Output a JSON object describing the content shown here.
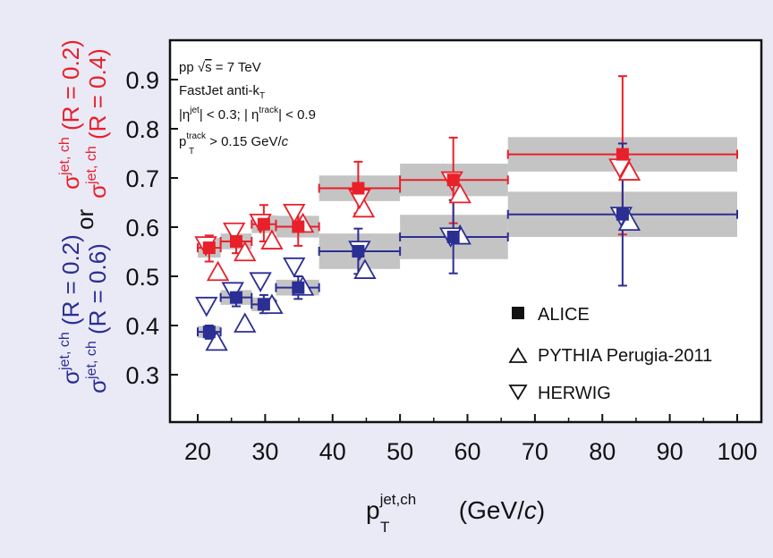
{
  "chart_data": {
    "type": "scatter",
    "xlim": [
      15,
      105
    ],
    "ylim": [
      0.27,
      0.97
    ],
    "xticks": [
      20,
      30,
      40,
      50,
      60,
      70,
      80,
      90,
      100
    ],
    "xtick_labels": [
      "20",
      "30",
      "40",
      "50",
      "60",
      "70",
      "80",
      "90",
      "100"
    ],
    "yticks": [
      0.3,
      0.4,
      0.5,
      0.6,
      0.7,
      0.8,
      0.9
    ],
    "ytick_labels": [
      "0.3",
      "0.4",
      "0.5",
      "0.6",
      "0.7",
      "0.8",
      "0.9"
    ],
    "xlabel": {
      "main": "p",
      "sup": "jet,ch",
      "sub": "T",
      "unit_pre": " (GeV/",
      "unit_var": "c",
      "unit_post": ")"
    },
    "ylabel": {
      "red_top": {
        "sym": "σ",
        "sup": "jet, ch",
        "text": " (R = 0.2)"
      },
      "red_bottom": {
        "sym": "σ",
        "sup": "jet, ch",
        "text": " (R = 0.4)"
      },
      "or": "or",
      "blue_top": {
        "sym": "σ",
        "sup": "jet, ch",
        "text": " (R = 0.2)"
      },
      "blue_bottom": {
        "sym": "σ",
        "sup": "jet, ch",
        "text": " (R = 0.6)"
      }
    },
    "annotations": {
      "line1": {
        "a": "pp ",
        "sqrt": "√",
        "s": "s",
        "b": " = 7 TeV"
      },
      "line2": {
        "a": "FastJet anti-k",
        "sub": "T"
      },
      "line3": {
        "a": "|η",
        "sup1": "jet",
        "b": "| < 0.3; | η",
        "sup2": "track",
        "c": "| < 0.9"
      },
      "line4": {
        "a": "p",
        "sup": "track",
        "sub": "T",
        "b": " > 0.15 GeV/",
        "c": "c"
      }
    },
    "legend": [
      {
        "marker": "square",
        "label": "ALICE"
      },
      {
        "marker": "triangle-up",
        "label": "PYTHIA Perugia-2011"
      },
      {
        "marker": "triangle-down",
        "label": "HERWIG"
      }
    ],
    "grid": false,
    "colors": {
      "red": "#e8202a",
      "blue": "#2b2e92",
      "sys": "#c4c4c4",
      "frame": "#111111"
    },
    "series": [
      {
        "color": "red",
        "alice": [
          {
            "x": 21.7,
            "y": 0.558,
            "xlo": 20,
            "xhi": 23.4,
            "ylo": 0.53,
            "yhi": 0.583,
            "sys": 0.02
          },
          {
            "x": 25.7,
            "y": 0.571,
            "xlo": 23.4,
            "xhi": 28,
            "ylo": 0.547,
            "yhi": 0.597,
            "sys": 0.016
          },
          {
            "x": 29.8,
            "y": 0.606,
            "xlo": 28,
            "xhi": 31.6,
            "ylo": 0.571,
            "yhi": 0.645,
            "sys": 0.018
          },
          {
            "x": 34.9,
            "y": 0.601,
            "xlo": 31.6,
            "xhi": 38,
            "ylo": 0.562,
            "yhi": 0.638,
            "sys": 0.022
          },
          {
            "x": 43.8,
            "y": 0.679,
            "xlo": 38,
            "xhi": 50,
            "ylo": 0.628,
            "yhi": 0.733,
            "sys": 0.026
          },
          {
            "x": 57.9,
            "y": 0.696,
            "xlo": 50,
            "xhi": 66,
            "ylo": 0.608,
            "yhi": 0.782,
            "sys": 0.033
          },
          {
            "x": 83,
            "y": 0.748,
            "xlo": 66,
            "xhi": 100,
            "ylo": 0.585,
            "yhi": 0.907,
            "sys": 0.035
          }
        ],
        "pythia": [
          {
            "x": 23,
            "y": 0.508
          },
          {
            "x": 27,
            "y": 0.548
          },
          {
            "x": 31,
            "y": 0.572
          },
          {
            "x": 35.6,
            "y": 0.606
          },
          {
            "x": 44.6,
            "y": 0.637
          },
          {
            "x": 58.9,
            "y": 0.666
          },
          {
            "x": 84,
            "y": 0.712
          }
        ],
        "herwig": [
          {
            "x": 21.2,
            "y": 0.564
          },
          {
            "x": 25.4,
            "y": 0.592
          },
          {
            "x": 29.3,
            "y": 0.61
          },
          {
            "x": 34.3,
            "y": 0.63
          },
          {
            "x": 44,
            "y": 0.66
          },
          {
            "x": 57.7,
            "y": 0.696
          },
          {
            "x": 82.6,
            "y": 0.722
          }
        ]
      },
      {
        "color": "blue",
        "alice": [
          {
            "x": 21.7,
            "y": 0.387,
            "xlo": 20,
            "xhi": 23.4,
            "ylo": 0.373,
            "yhi": 0.4,
            "sys": 0.012
          },
          {
            "x": 25.7,
            "y": 0.457,
            "xlo": 23.4,
            "xhi": 28,
            "ylo": 0.439,
            "yhi": 0.476,
            "sys": 0.015
          },
          {
            "x": 29.8,
            "y": 0.443,
            "xlo": 28,
            "xhi": 31.6,
            "ylo": 0.425,
            "yhi": 0.462,
            "sys": 0.014
          },
          {
            "x": 34.9,
            "y": 0.477,
            "xlo": 31.6,
            "xhi": 38,
            "ylo": 0.454,
            "yhi": 0.5,
            "sys": 0.016
          },
          {
            "x": 43.8,
            "y": 0.551,
            "xlo": 38,
            "xhi": 50,
            "ylo": 0.505,
            "yhi": 0.597,
            "sys": 0.036
          },
          {
            "x": 57.9,
            "y": 0.58,
            "xlo": 50,
            "xhi": 66,
            "ylo": 0.506,
            "yhi": 0.655,
            "sys": 0.045
          },
          {
            "x": 83,
            "y": 0.626,
            "xlo": 66,
            "xhi": 100,
            "ylo": 0.481,
            "yhi": 0.77,
            "sys": 0.046
          }
        ],
        "pythia": [
          {
            "x": 22.8,
            "y": 0.366
          },
          {
            "x": 27,
            "y": 0.403
          },
          {
            "x": 31,
            "y": 0.441
          },
          {
            "x": 35.6,
            "y": 0.478
          },
          {
            "x": 44.8,
            "y": 0.512
          },
          {
            "x": 58.9,
            "y": 0.582
          },
          {
            "x": 84,
            "y": 0.61
          }
        ],
        "herwig": [
          {
            "x": 21.3,
            "y": 0.441
          },
          {
            "x": 25.2,
            "y": 0.471
          },
          {
            "x": 29.3,
            "y": 0.491
          },
          {
            "x": 34.3,
            "y": 0.521
          },
          {
            "x": 44,
            "y": 0.555
          },
          {
            "x": 57.5,
            "y": 0.582
          },
          {
            "x": 82.8,
            "y": 0.624
          }
        ]
      }
    ]
  }
}
